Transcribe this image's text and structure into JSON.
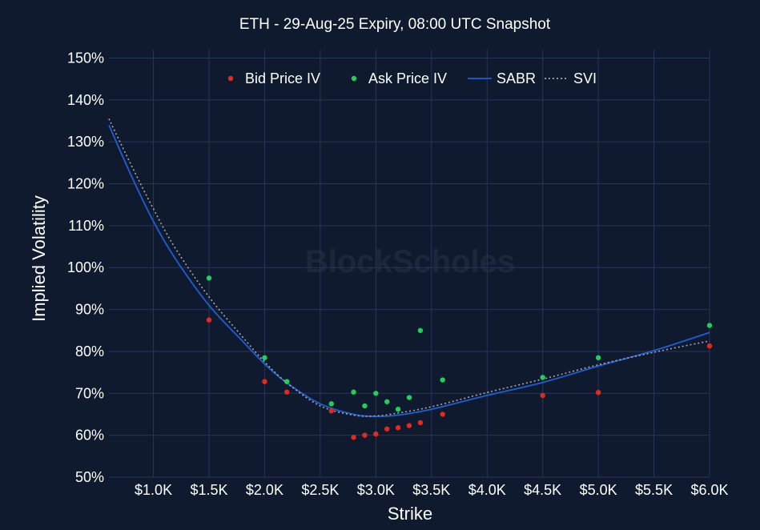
{
  "chart_data": {
    "type": "scatter",
    "title": "ETH - 29-Aug-25 Expiry, 08:00 UTC Snapshot",
    "xlabel": "Strike",
    "ylabel": "Implied Volatility",
    "xlim": [
      600,
      6000
    ],
    "ylim": [
      50,
      152
    ],
    "x_ticks": [
      1000,
      1500,
      2000,
      2500,
      3000,
      3500,
      4000,
      4500,
      5000,
      5500,
      6000
    ],
    "x_tick_labels": [
      "$1.0K",
      "$1.5K",
      "$2.0K",
      "$2.5K",
      "$3.0K",
      "$3.5K",
      "$4.0K",
      "$4.5K",
      "$5.0K",
      "$5.5K",
      "$6.0K"
    ],
    "y_ticks": [
      50,
      60,
      70,
      80,
      90,
      100,
      110,
      120,
      130,
      140,
      150
    ],
    "y_tick_labels": [
      "50%",
      "60%",
      "70%",
      "80%",
      "90%",
      "100%",
      "110%",
      "120%",
      "130%",
      "140%",
      "150%"
    ],
    "grid": true,
    "legend_position": "top",
    "watermark": "BlockScholes",
    "series": [
      {
        "name": "Bid Price IV",
        "kind": "scatter",
        "color": "#e8281d",
        "points": [
          [
            1500,
            87.5
          ],
          [
            2000,
            72.8
          ],
          [
            2200,
            70.3
          ],
          [
            2600,
            65.8
          ],
          [
            2800,
            59.5
          ],
          [
            2900,
            60.0
          ],
          [
            3000,
            60.3
          ],
          [
            3100,
            61.5
          ],
          [
            3200,
            61.8
          ],
          [
            3300,
            62.3
          ],
          [
            3400,
            63.0
          ],
          [
            3600,
            65.0
          ],
          [
            4500,
            69.5
          ],
          [
            5000,
            70.2
          ],
          [
            6000,
            81.3
          ]
        ]
      },
      {
        "name": "Ask Price IV",
        "kind": "scatter",
        "color": "#1fd15a",
        "points": [
          [
            1500,
            97.5
          ],
          [
            2000,
            78.5
          ],
          [
            2200,
            72.8
          ],
          [
            2600,
            67.5
          ],
          [
            2800,
            70.3
          ],
          [
            2900,
            67.0
          ],
          [
            3000,
            70.0
          ],
          [
            3100,
            68.0
          ],
          [
            3200,
            66.2
          ],
          [
            3300,
            69.0
          ],
          [
            3400,
            85.0
          ],
          [
            3600,
            73.2
          ],
          [
            4500,
            73.8
          ],
          [
            5000,
            78.5
          ],
          [
            6000,
            86.2
          ]
        ]
      },
      {
        "name": "SABR",
        "kind": "line",
        "color": "#1d5fd6",
        "points": [
          [
            600,
            134
          ],
          [
            800,
            122
          ],
          [
            1000,
            111
          ],
          [
            1200,
            102
          ],
          [
            1500,
            91
          ],
          [
            1800,
            82.5
          ],
          [
            2000,
            77
          ],
          [
            2200,
            72.5
          ],
          [
            2500,
            67.5
          ],
          [
            2800,
            65
          ],
          [
            3000,
            64.5
          ],
          [
            3200,
            64.8
          ],
          [
            3500,
            66.2
          ],
          [
            4000,
            69.5
          ],
          [
            4500,
            72.6
          ],
          [
            5000,
            76.5
          ],
          [
            5500,
            80.2
          ],
          [
            6000,
            84.5
          ]
        ]
      },
      {
        "name": "SVI",
        "kind": "dotted-line",
        "color": "#a8a8a8",
        "points": [
          [
            600,
            135.5
          ],
          [
            800,
            124.5
          ],
          [
            1000,
            114
          ],
          [
            1200,
            104.5
          ],
          [
            1500,
            93
          ],
          [
            1800,
            83.5
          ],
          [
            2000,
            77.5
          ],
          [
            2200,
            72.5
          ],
          [
            2500,
            67
          ],
          [
            2800,
            64.8
          ],
          [
            3000,
            64.6
          ],
          [
            3200,
            65.3
          ],
          [
            3500,
            66.8
          ],
          [
            4000,
            70.2
          ],
          [
            4500,
            73.4
          ],
          [
            5000,
            76.8
          ],
          [
            5500,
            79.8
          ],
          [
            6000,
            82.5
          ]
        ]
      }
    ]
  }
}
